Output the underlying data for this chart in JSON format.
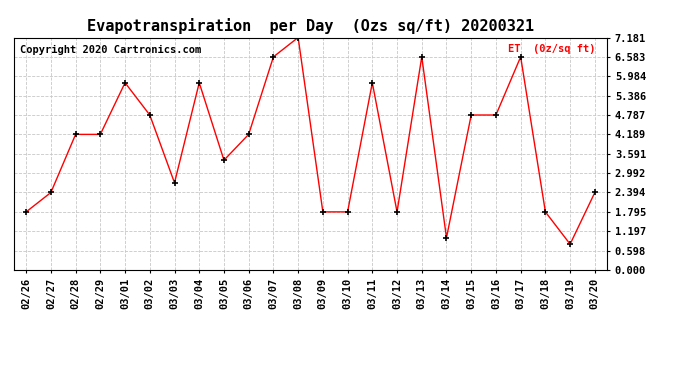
{
  "title": "Evapotranspiration  per Day  (Ozs sq/ft) 20200321",
  "legend_label": "ET  (0z/sq ft)",
  "copyright_text": "Copyright 2020 Cartronics.com",
  "line_color": "red",
  "marker_color": "black",
  "background_color": "#ffffff",
  "grid_color": "#c8c8c8",
  "dates": [
    "02/26",
    "02/27",
    "02/28",
    "02/29",
    "03/01",
    "03/02",
    "03/03",
    "03/04",
    "03/05",
    "03/06",
    "03/07",
    "03/08",
    "03/09",
    "03/10",
    "03/11",
    "03/12",
    "03/13",
    "03/14",
    "03/15",
    "03/16",
    "03/17",
    "03/18",
    "03/19",
    "03/20"
  ],
  "values": [
    1.795,
    2.394,
    4.189,
    4.189,
    5.784,
    4.787,
    2.693,
    5.784,
    3.391,
    4.189,
    6.583,
    7.181,
    1.795,
    1.795,
    5.784,
    1.795,
    6.583,
    0.997,
    4.787,
    4.787,
    6.583,
    1.795,
    0.798,
    2.394
  ],
  "ylim": [
    0.0,
    7.181
  ],
  "yticks": [
    0.0,
    0.598,
    1.197,
    1.795,
    2.394,
    2.992,
    3.591,
    4.189,
    4.787,
    5.386,
    5.984,
    6.583,
    7.181
  ],
  "title_fontsize": 11,
  "label_fontsize": 7.5,
  "tick_fontsize": 7.5,
  "copyright_fontsize": 7.5
}
